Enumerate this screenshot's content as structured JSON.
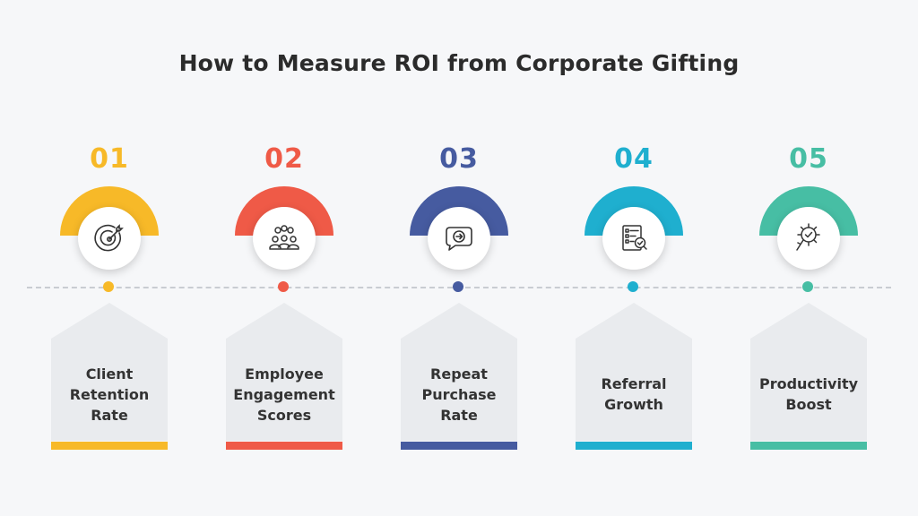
{
  "title": "How to Measure ROI from Corporate Gifting",
  "steps": [
    {
      "number": "01",
      "label": "Client Retention Rate",
      "color": "#f7b928",
      "icon": "target-icon"
    },
    {
      "number": "02",
      "label": "Employee Engagement Scores",
      "color": "#ef5a47",
      "icon": "team-icon"
    },
    {
      "number": "03",
      "label": "Repeat Purchase Rate",
      "color": "#465ba0",
      "icon": "repeat-chat-icon"
    },
    {
      "number": "04",
      "label": "Referral Growth",
      "color": "#1fafcf",
      "icon": "checklist-icon"
    },
    {
      "number": "05",
      "label": "Productivity Boost",
      "color": "#47bea4",
      "icon": "gear-check-icon"
    }
  ]
}
